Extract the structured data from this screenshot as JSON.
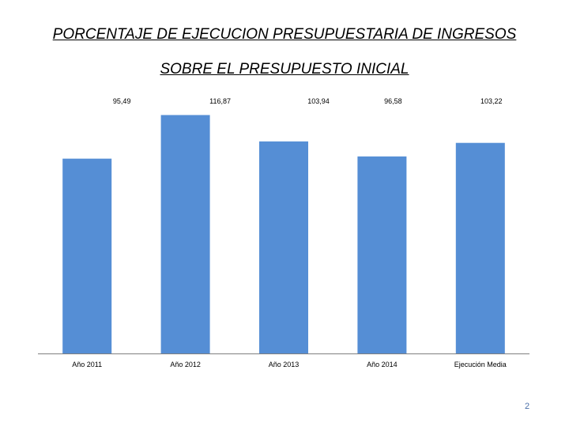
{
  "slide": {
    "title_line1": "PORCENTAJE DE EJECUCION PRESUPUESTARIA DE INGRESOS",
    "title_line2": "SOBRE EL PRESUPUESTO INICIAL",
    "page_number": "2"
  },
  "colors": {
    "bar": "#558ED5",
    "axis": "#7f7f7f",
    "text": "#000000",
    "page_number": "#4a6fa8"
  },
  "chart_data": {
    "type": "bar",
    "title": "",
    "xlabel": "",
    "ylabel": "",
    "categories": [
      "Año 2011",
      "Año 2012",
      "Año 2013",
      "Año 2014",
      "Ejecución Media"
    ],
    "values": [
      95.49,
      116.87,
      103.94,
      96.58,
      103.22
    ],
    "data_labels": [
      "95,49",
      "116,87",
      "103,94",
      "96,58",
      "103,22"
    ],
    "ylim": [
      0,
      120
    ],
    "grid": false,
    "legend": "none"
  }
}
